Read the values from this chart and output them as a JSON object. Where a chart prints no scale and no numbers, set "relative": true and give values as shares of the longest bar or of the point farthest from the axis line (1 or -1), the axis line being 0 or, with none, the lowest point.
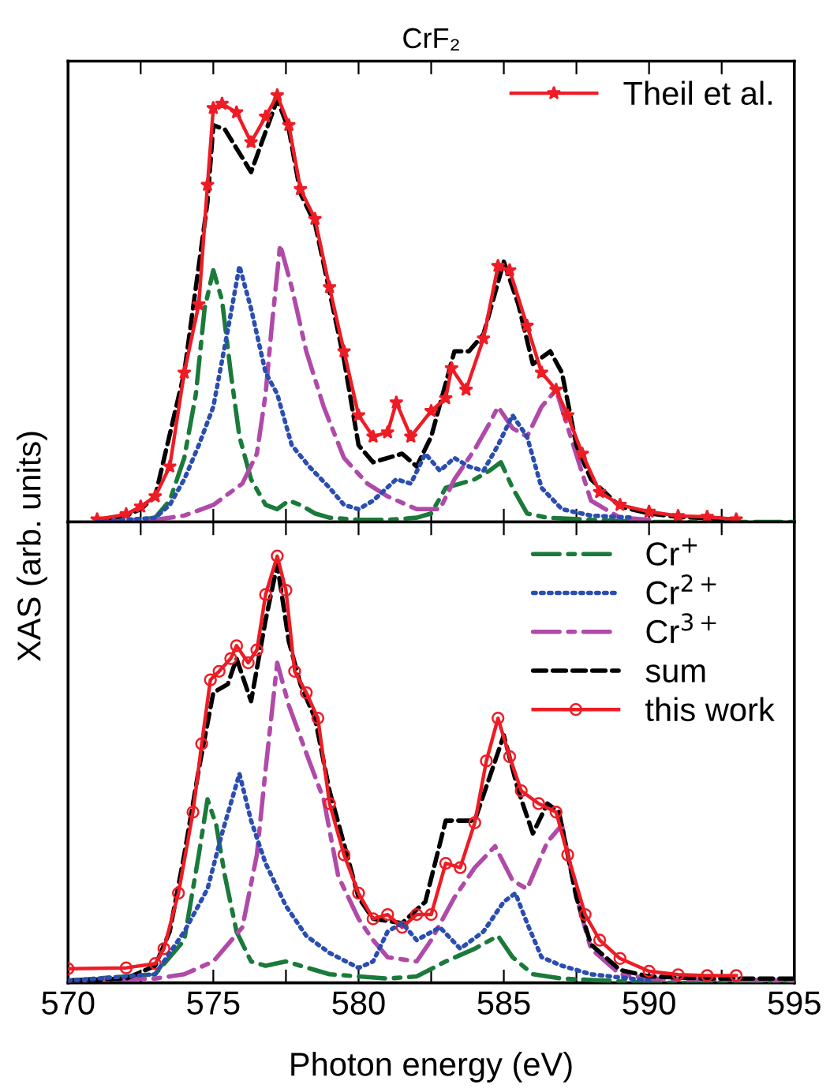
{
  "chart_data": [
    {
      "type": "line",
      "title": "CrF₂",
      "ylabel": "XAS (arb. units)",
      "relative": true,
      "xlim": [
        570,
        595
      ],
      "xticks": [
        {
          "value": 570,
          "label": null
        },
        {
          "value": 572.5,
          "label": null
        },
        {
          "value": 575,
          "label": null
        },
        {
          "value": 577.5,
          "label": null
        },
        {
          "value": 580,
          "label": null
        },
        {
          "value": 582.5,
          "label": null
        },
        {
          "value": 585,
          "label": null
        },
        {
          "value": 587.5,
          "label": null
        },
        {
          "value": 590,
          "label": null
        },
        {
          "value": 592.5,
          "label": null
        },
        {
          "value": 595,
          "label": null
        }
      ],
      "tick_labels": false,
      "legend": "top right",
      "grid": false,
      "series": [
        {
          "color": "#1a7a3a",
          "line_style": "dashdot",
          "marker": "none",
          "x": [
            571,
            572.5,
            573,
            573.5,
            574,
            574.4,
            574.7,
            575,
            575.3,
            575.6,
            575.9,
            576.3,
            576.8,
            577.2,
            577.6,
            578,
            578.5,
            579,
            580,
            581,
            582,
            582.5,
            583,
            584,
            584.5,
            584.9,
            585.3,
            585.8,
            586.5,
            588,
            590,
            595
          ],
          "values": [
            0,
            0.005,
            0.01,
            0.05,
            0.15,
            0.3,
            0.5,
            0.59,
            0.52,
            0.35,
            0.2,
            0.1,
            0.04,
            0.03,
            0.05,
            0.04,
            0.02,
            0.01,
            0.005,
            0.005,
            0.01,
            0.02,
            0.08,
            0.1,
            0.12,
            0.14,
            0.08,
            0.02,
            0.01,
            0.005,
            0,
            0
          ]
        },
        {
          "color": "#2a4db0",
          "line_style": "dotted",
          "marker": "none",
          "x": [
            571,
            573,
            573.5,
            574,
            574.5,
            575,
            575.5,
            575.9,
            576.3,
            576.8,
            577.2,
            577.7,
            578.3,
            579,
            579.5,
            580,
            580.5,
            581.3,
            581.8,
            582.3,
            582.8,
            583.3,
            583.8,
            584.3,
            584.8,
            585.3,
            585.8,
            586.3,
            587,
            588,
            589.5
          ],
          "values": [
            0,
            0.01,
            0.04,
            0.1,
            0.18,
            0.27,
            0.45,
            0.6,
            0.5,
            0.35,
            0.3,
            0.18,
            0.13,
            0.08,
            0.04,
            0.03,
            0.05,
            0.1,
            0.09,
            0.16,
            0.12,
            0.15,
            0.13,
            0.12,
            0.18,
            0.25,
            0.2,
            0.08,
            0.03,
            0.015,
            0.01
          ]
        },
        {
          "color": "#b04aa8",
          "line_style": "dashdot",
          "marker": "none",
          "x": [
            571,
            573,
            574,
            575,
            576,
            576.5,
            576.8,
            577,
            577.3,
            577.7,
            578.2,
            578.8,
            579.5,
            580.3,
            581,
            582,
            582.8,
            583.3,
            584,
            584.5,
            584.8,
            585.3,
            585.8,
            586.3,
            586.8,
            587.3,
            588,
            589,
            590
          ],
          "values": [
            0.003,
            0.005,
            0.015,
            0.04,
            0.09,
            0.16,
            0.3,
            0.45,
            0.65,
            0.55,
            0.4,
            0.27,
            0.15,
            0.09,
            0.06,
            0.03,
            0.03,
            0.1,
            0.17,
            0.23,
            0.27,
            0.22,
            0.2,
            0.27,
            0.31,
            0.2,
            0.05,
            0.01,
            0.005
          ]
        },
        {
          "color": "#000000",
          "line_style": "dashed",
          "marker": "none",
          "x": [
            571,
            572,
            572.5,
            573,
            574,
            574.8,
            575,
            575.4,
            576.3,
            577.2,
            577.6,
            578,
            578.5,
            579,
            579.5,
            580,
            580.5,
            581.5,
            582,
            582.5,
            583.3,
            583.8,
            584.3,
            585,
            585.5,
            586,
            586.6,
            587,
            587.5,
            588,
            589,
            590,
            591,
            593
          ],
          "values": [
            0.005,
            0.015,
            0.03,
            0.06,
            0.35,
            0.75,
            0.93,
            0.92,
            0.82,
            0.99,
            0.92,
            0.77,
            0.7,
            0.54,
            0.38,
            0.18,
            0.14,
            0.16,
            0.13,
            0.2,
            0.4,
            0.4,
            0.44,
            0.61,
            0.51,
            0.37,
            0.4,
            0.35,
            0.18,
            0.1,
            0.036,
            0.02,
            0.012,
            0.006
          ]
        },
        {
          "name": "Theil et al.",
          "color": "#ee1c25",
          "line_style": "solid",
          "marker": "star",
          "x": [
            571,
            572,
            572.5,
            573,
            573.5,
            574,
            574.5,
            574.8,
            575,
            575.3,
            575.8,
            576.3,
            576.8,
            577.2,
            577.6,
            578,
            578.5,
            579,
            579.5,
            580,
            580.5,
            581,
            581.3,
            581.8,
            582.5,
            583,
            583.2,
            583.7,
            584.3,
            584.8,
            585.2,
            585.8,
            586.3,
            586.8,
            587.2,
            587.7,
            588.3,
            589,
            590,
            591,
            592,
            593
          ],
          "values": [
            0.006,
            0.018,
            0.036,
            0.06,
            0.13,
            0.35,
            0.51,
            0.79,
            0.97,
            0.98,
            0.96,
            0.89,
            0.95,
            1.0,
            0.93,
            0.78,
            0.71,
            0.55,
            0.4,
            0.25,
            0.2,
            0.21,
            0.28,
            0.2,
            0.26,
            0.29,
            0.36,
            0.31,
            0.43,
            0.6,
            0.59,
            0.46,
            0.35,
            0.31,
            0.25,
            0.16,
            0.07,
            0.04,
            0.024,
            0.014,
            0.012,
            0.006
          ]
        }
      ]
    },
    {
      "type": "line",
      "xlabel": "Photon energy (eV)",
      "relative": true,
      "xlim": [
        570,
        595
      ],
      "xticks": [
        570,
        {
          "value": 572.5,
          "label": null
        },
        575,
        {
          "value": 577.5,
          "label": null
        },
        580,
        {
          "value": 582.5,
          "label": null
        },
        585,
        {
          "value": 587.5,
          "label": null
        },
        590,
        {
          "value": 592.5,
          "label": null
        },
        595
      ],
      "tick_labels": "x",
      "legend": "top right",
      "grid": false,
      "series": [
        {
          "name": "Cr$^{+}$",
          "color": "#1a7a3a",
          "line_style": "dashdot",
          "marker": "none",
          "x": [
            570,
            573,
            574,
            574.5,
            574.8,
            575.1,
            575.4,
            575.8,
            576.3,
            576.8,
            577.5,
            578,
            579,
            580,
            581,
            582,
            583,
            584,
            584.8,
            585.3,
            586,
            587,
            590,
            595
          ],
          "values": [
            0.005,
            0.02,
            0.1,
            0.3,
            0.43,
            0.37,
            0.25,
            0.12,
            0.05,
            0.04,
            0.05,
            0.04,
            0.02,
            0.015,
            0.01,
            0.015,
            0.05,
            0.08,
            0.11,
            0.06,
            0.02,
            0.01,
            0,
            0
          ]
        },
        {
          "name": "Cr$^{2+}$",
          "color": "#2a4db0",
          "line_style": "dotted",
          "marker": "none",
          "x": [
            570,
            573,
            574,
            574.8,
            575.3,
            575.9,
            576.3,
            576.8,
            577.5,
            578.2,
            579,
            580,
            580.5,
            581,
            581.5,
            582,
            582.8,
            583.5,
            584.3,
            585,
            585.4,
            585.8,
            586.3,
            587,
            588,
            590
          ],
          "values": [
            0.005,
            0.02,
            0.12,
            0.22,
            0.35,
            0.49,
            0.38,
            0.28,
            0.18,
            0.11,
            0.07,
            0.035,
            0.05,
            0.12,
            0.14,
            0.1,
            0.13,
            0.08,
            0.12,
            0.19,
            0.21,
            0.14,
            0.06,
            0.04,
            0.02,
            0.005
          ]
        },
        {
          "name": "Cr$^{3+}$",
          "color": "#b04aa8",
          "line_style": "dashdot",
          "marker": "none",
          "x": [
            570,
            573,
            574,
            575,
            576,
            576.5,
            576.8,
            577.2,
            577.6,
            578.3,
            578.8,
            579.3,
            580,
            580.5,
            581,
            582,
            582.5,
            583.3,
            584,
            584.7,
            585.3,
            585.8,
            586.5,
            587,
            587.5,
            588,
            589,
            590,
            595
          ],
          "values": [
            0.005,
            0.01,
            0.02,
            0.05,
            0.13,
            0.3,
            0.5,
            0.75,
            0.65,
            0.52,
            0.43,
            0.25,
            0.15,
            0.1,
            0.06,
            0.05,
            0.1,
            0.2,
            0.27,
            0.32,
            0.24,
            0.22,
            0.33,
            0.37,
            0.2,
            0.08,
            0.02,
            0.01,
            0.005
          ]
        },
        {
          "name": "sum",
          "color": "#000000",
          "line_style": "dashed",
          "marker": "none",
          "x": [
            570,
            572,
            573,
            573.5,
            574,
            574.5,
            575,
            575.5,
            575.8,
            576.3,
            576.8,
            577.2,
            577.6,
            578,
            578.5,
            579,
            580,
            580.5,
            581.5,
            582.3,
            583,
            583.5,
            584,
            584.5,
            585,
            585.5,
            586,
            586.5,
            586.9,
            587.5,
            588,
            589,
            590,
            592,
            595
          ],
          "values": [
            0.005,
            0.01,
            0.04,
            0.12,
            0.3,
            0.5,
            0.68,
            0.7,
            0.76,
            0.66,
            0.85,
            0.98,
            0.8,
            0.7,
            0.62,
            0.45,
            0.2,
            0.15,
            0.14,
            0.19,
            0.38,
            0.38,
            0.38,
            0.48,
            0.58,
            0.45,
            0.35,
            0.42,
            0.4,
            0.2,
            0.09,
            0.03,
            0.015,
            0.01,
            0.01
          ]
        },
        {
          "name": "this work",
          "color": "#ee1c25",
          "line_style": "solid",
          "marker": "circle",
          "x": [
            570,
            572,
            573,
            573.3,
            573.8,
            574.3,
            574.6,
            574.9,
            575.2,
            575.6,
            575.8,
            576.2,
            576.5,
            576.8,
            577.2,
            577.5,
            577.8,
            578.2,
            578.6,
            579,
            579.5,
            580,
            580.5,
            581,
            581.5,
            582,
            582.5,
            583,
            583.5,
            584,
            584.4,
            584.8,
            585.2,
            585.6,
            586.2,
            586.8,
            587.2,
            587.8,
            588.3,
            589,
            590,
            591,
            592,
            593
          ],
          "values": [
            0.033,
            0.035,
            0.045,
            0.08,
            0.21,
            0.4,
            0.56,
            0.71,
            0.73,
            0.76,
            0.79,
            0.75,
            0.78,
            0.91,
            1.0,
            0.92,
            0.73,
            0.68,
            0.62,
            0.42,
            0.3,
            0.21,
            0.15,
            0.16,
            0.13,
            0.16,
            0.16,
            0.28,
            0.27,
            0.375,
            0.52,
            0.62,
            0.53,
            0.45,
            0.42,
            0.4,
            0.3,
            0.16,
            0.1,
            0.057,
            0.027,
            0.019,
            0.017,
            0.017
          ]
        }
      ]
    }
  ]
}
